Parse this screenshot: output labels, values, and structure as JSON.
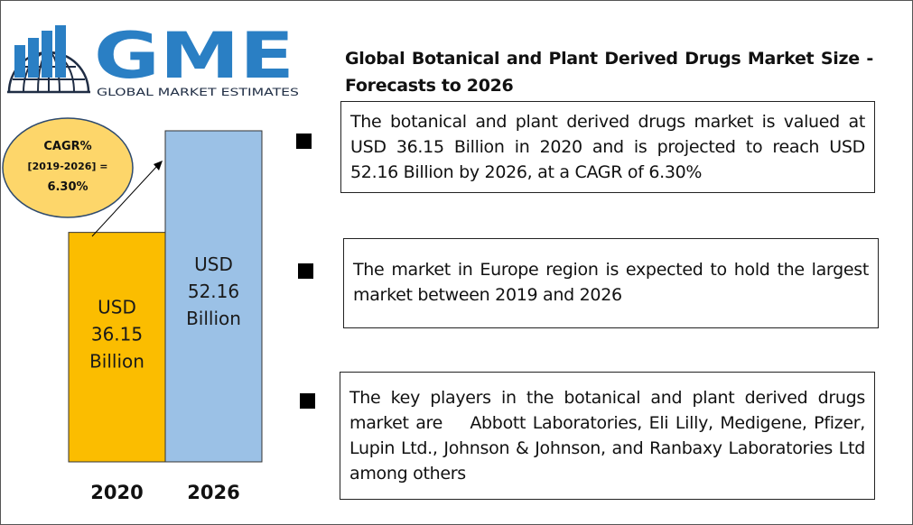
{
  "brand": {
    "logo_text": "GME",
    "logo_tagline": "GLOBAL MARKET ESTIMATES",
    "colors": {
      "blue": "#2a7fc4",
      "dark": "#1f2d44"
    }
  },
  "header": {
    "title": "Global Botanical and Plant Derived Drugs Market Size - Forecasts to 2026"
  },
  "cagr": {
    "line1": "CAGR%",
    "line2": "[2019-2026] =",
    "line3": "6.30%",
    "color": "#fdd66a"
  },
  "chart_data": {
    "type": "bar",
    "categories": [
      "2020",
      "2026"
    ],
    "values": [
      36.15,
      52.16
    ],
    "bar_labels": [
      [
        "USD",
        "36.15",
        "Billion"
      ],
      [
        "USD",
        "52.16",
        "Billion"
      ]
    ],
    "colors": [
      "#fbbd00",
      "#9bc1e6"
    ],
    "ylim": [
      0,
      55
    ],
    "title": "",
    "xlabel": "",
    "ylabel": "",
    "grid": false
  },
  "insights": [
    {
      "text": "The botanical and plant derived drugs market is valued at USD 36.15 Billion in 2020 and is projected to reach USD 52.16 Billion by 2026, at a CAGR of 6.30%"
    },
    {
      "text": "The market in Europe region is expected to hold the largest market between 2019 and 2026"
    },
    {
      "text": "The key players in the botanical and plant derived drugs market are    Abbott Laboratories, Eli Lilly, Medigene, Pfizer, Lupin Ltd., Johnson & Johnson, and Ranbaxy Laboratories Ltd among others"
    }
  ]
}
